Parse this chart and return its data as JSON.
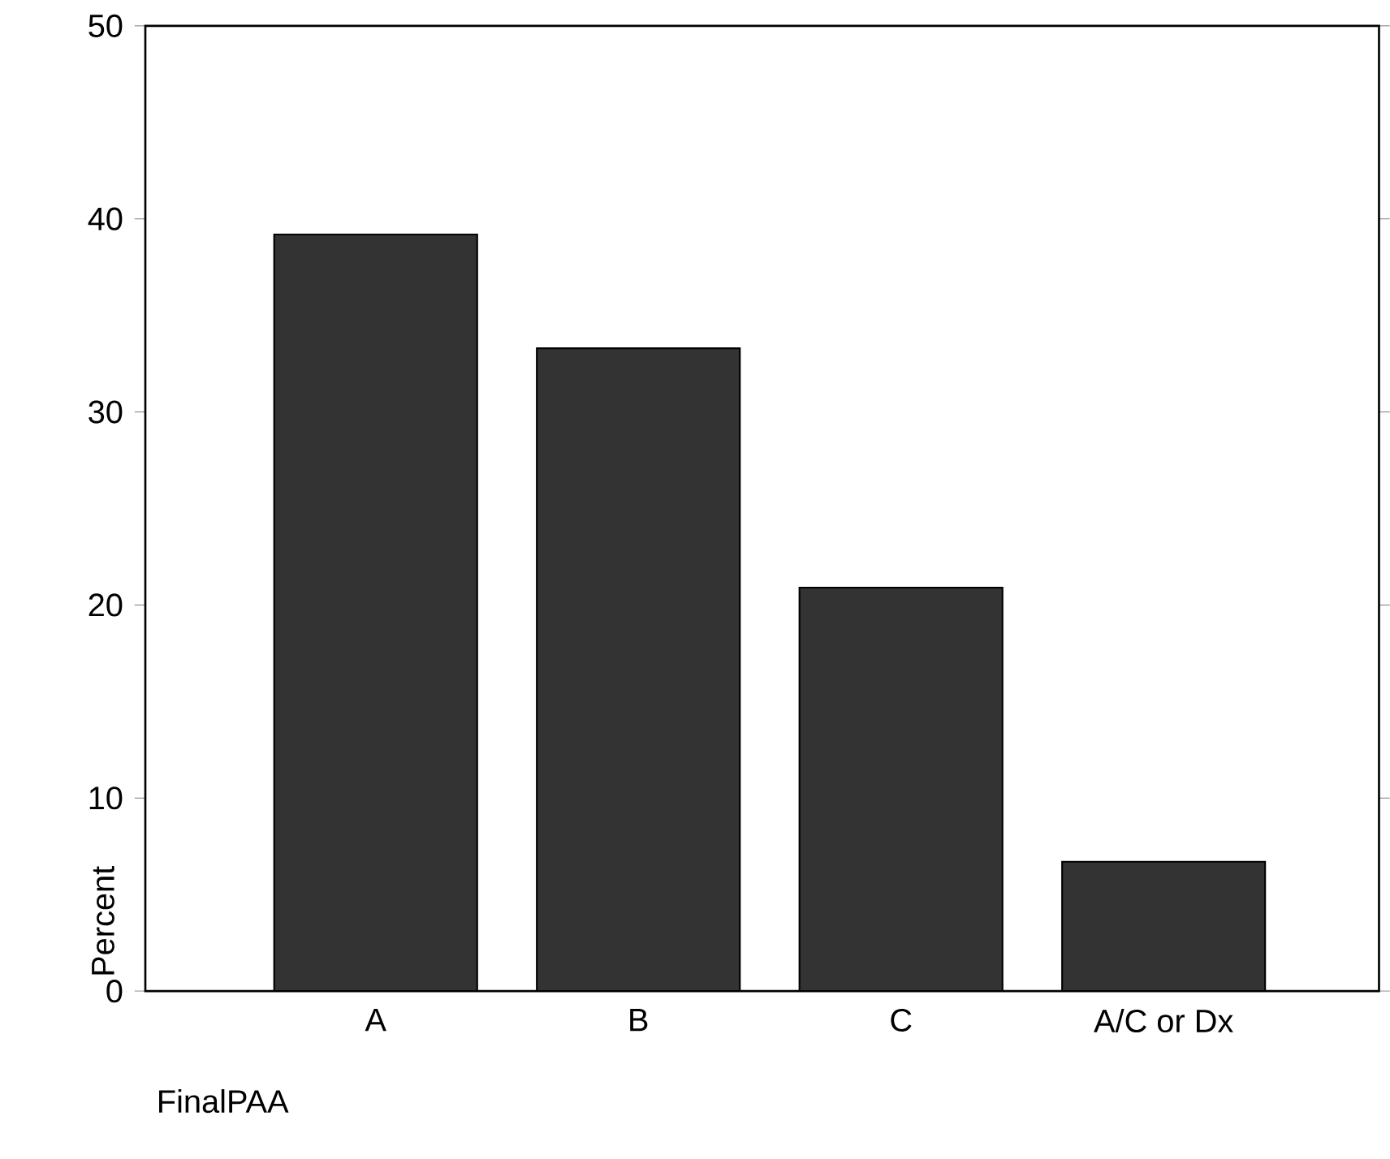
{
  "chart_data": {
    "type": "bar",
    "xlabel": "FinalPAA",
    "ylabel": "Percent",
    "categories": [
      "A",
      "B",
      "C",
      "A/C or Dx"
    ],
    "values": [
      39.2,
      33.3,
      20.9,
      6.7
    ],
    "color": "#333333",
    "ylim": [
      0,
      50
    ],
    "yticks": [
      0,
      10,
      20,
      30,
      40,
      50
    ]
  }
}
